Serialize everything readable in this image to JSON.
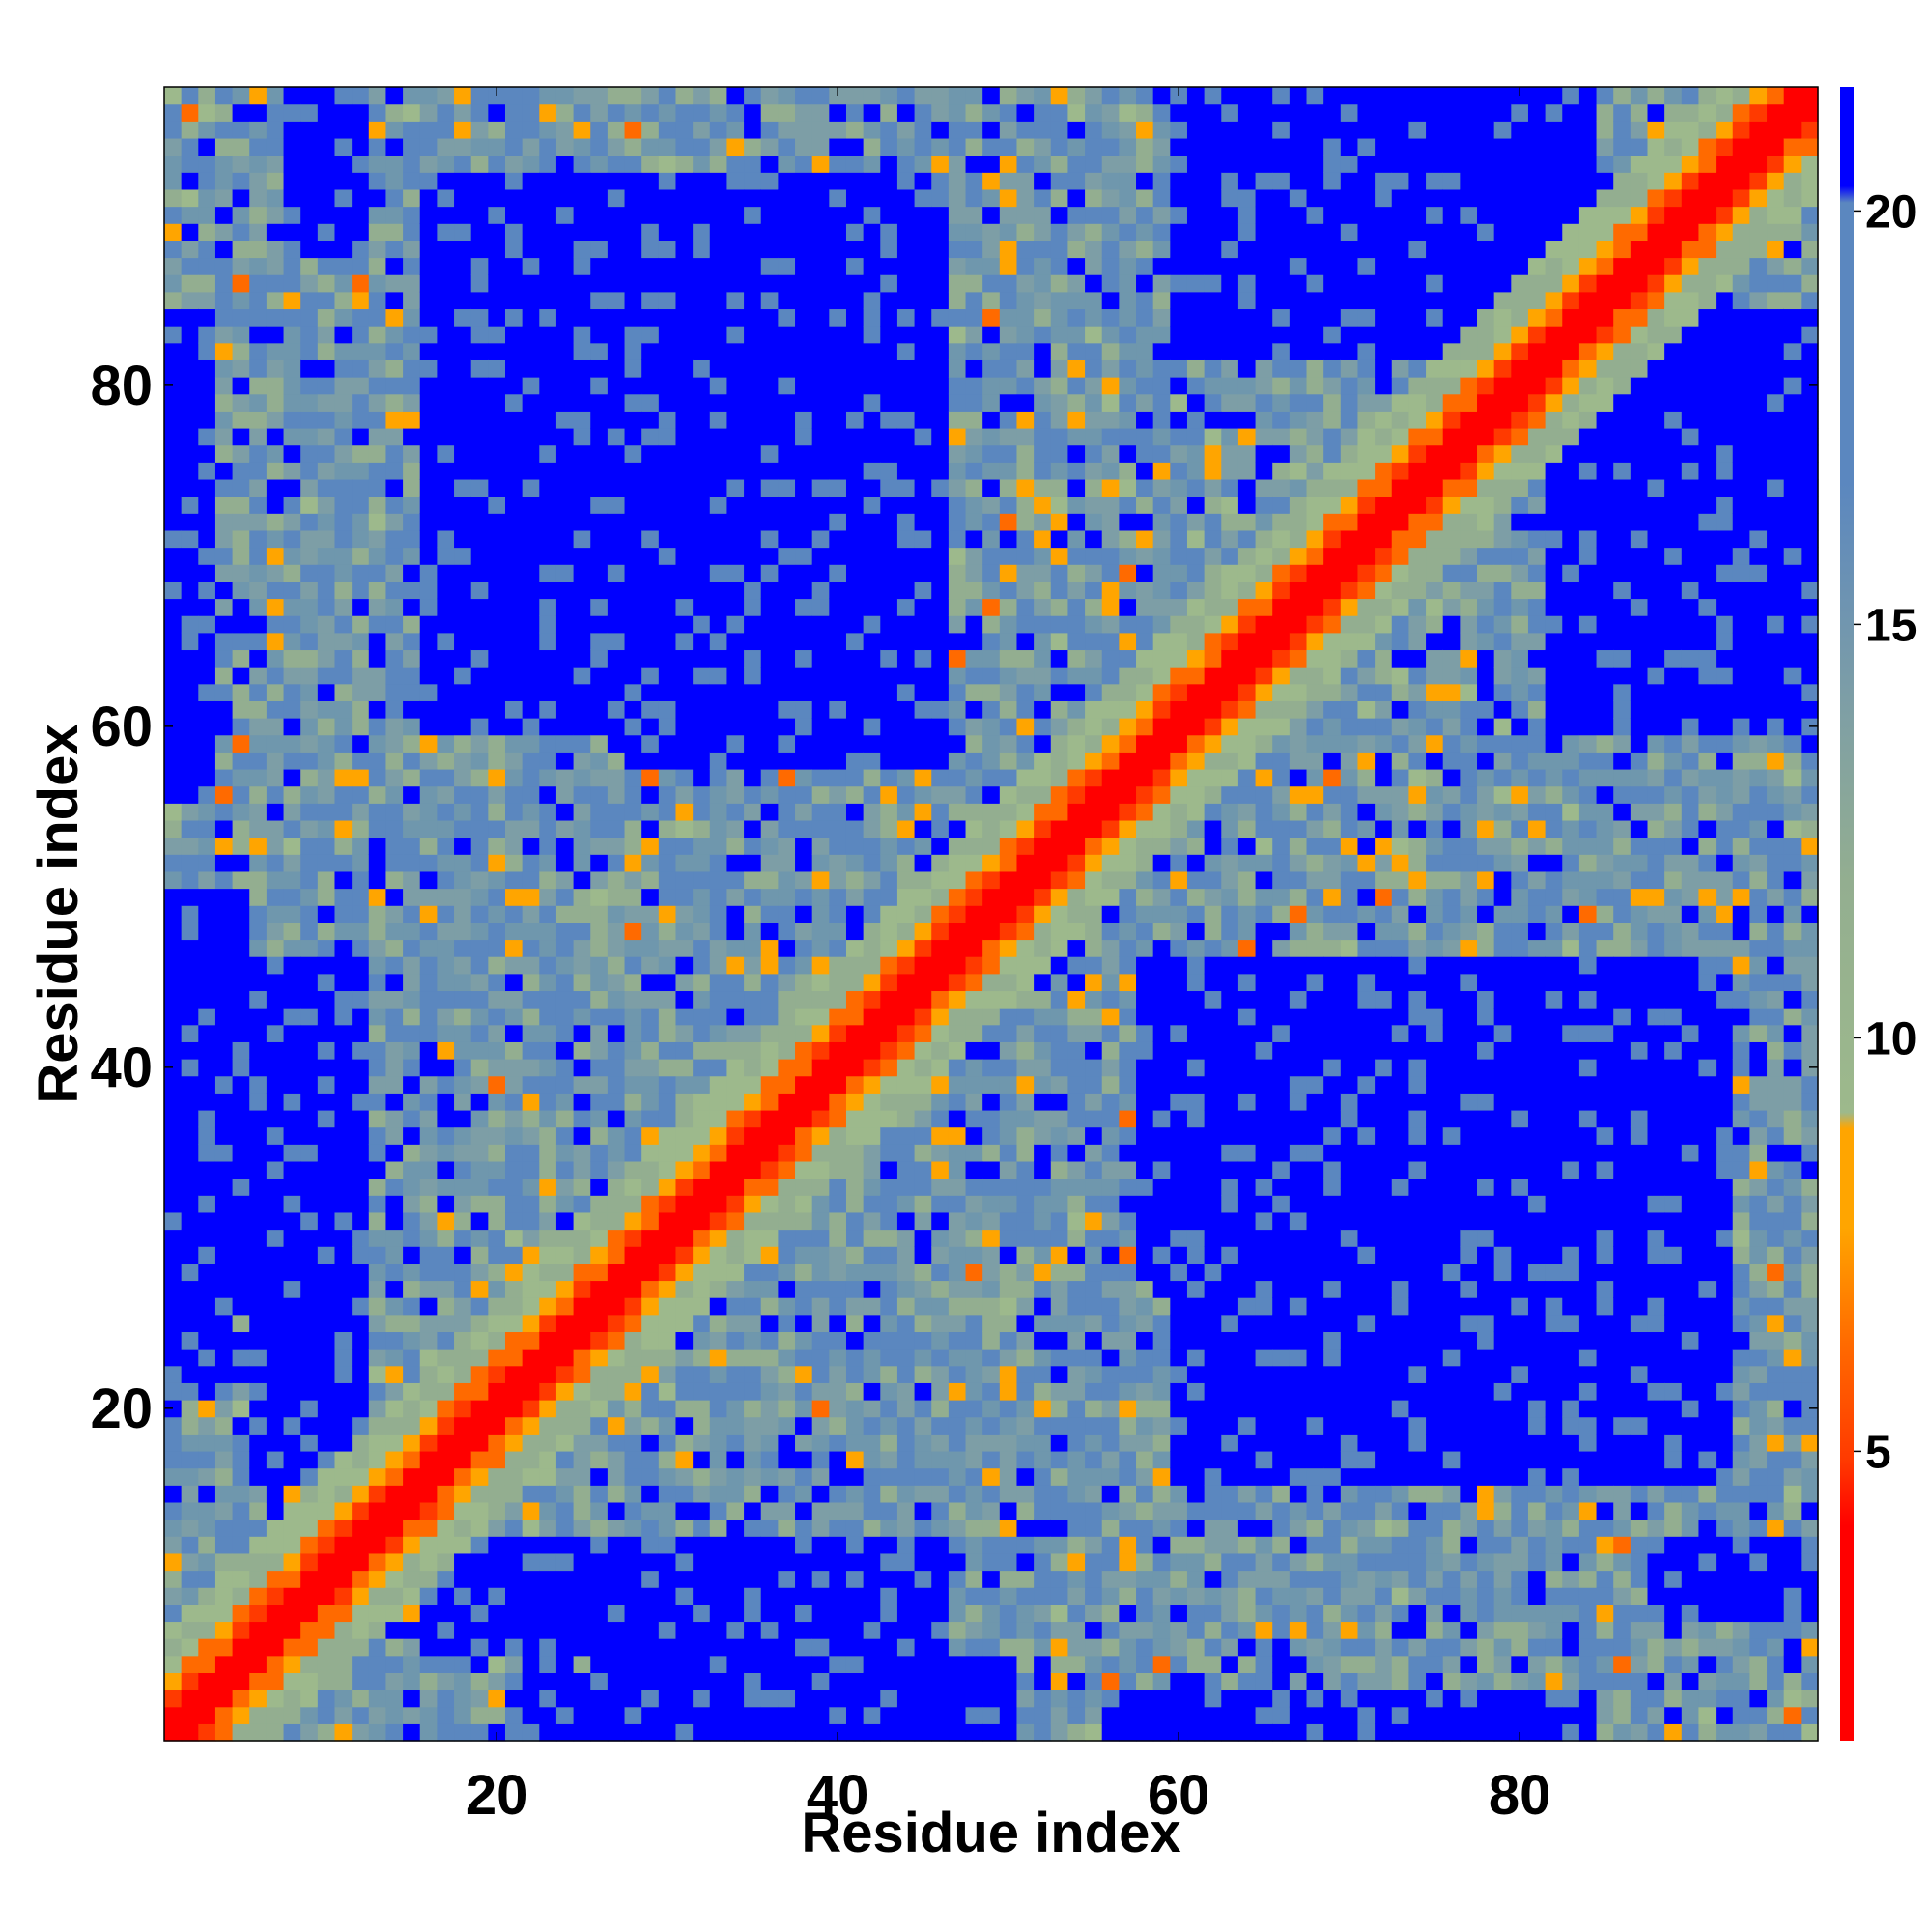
{
  "chart_data": {
    "type": "heatmap",
    "title": "",
    "xlabel": "Residue index",
    "ylabel": "Residue index",
    "n_residues": 97,
    "xlim": [
      1,
      97
    ],
    "ylim": [
      1,
      97
    ],
    "x_ticks": [
      20,
      40,
      60,
      80
    ],
    "y_ticks": [
      20,
      40,
      60,
      80
    ],
    "x_tick_labels": [
      "20",
      "40",
      "60",
      "80"
    ],
    "y_tick_labels": [
      "20",
      "40",
      "60",
      "80"
    ],
    "colorbar": {
      "range": [
        1.5,
        21.5
      ],
      "ticks": [
        5,
        10,
        15,
        20
      ],
      "tick_labels": [
        "5",
        "10",
        "15",
        "20"
      ],
      "colors": [
        "#ff0000",
        "#ff6a00",
        "#ffa500",
        "#9cb88a",
        "#5b87bf",
        "#0000ff"
      ]
    },
    "symmetric": true,
    "values_description_only": "pairwise residue distance map, symmetric about the diagonal",
    "regions": [
      {
        "x": [
          7,
          12
        ],
        "y": [
          16,
          46
        ],
        "value": 21
      },
      {
        "x": [
          16,
          46
        ],
        "y": [
          6,
          12
        ],
        "value": 21
      },
      {
        "x": [
          17,
          32
        ],
        "y": [
          62,
          92
        ],
        "value": 21
      },
      {
        "x": [
          28,
          46
        ],
        "y": [
          58,
          72
        ],
        "value": 21
      },
      {
        "x": [
          60,
          92
        ],
        "y": [
          16,
          46
        ],
        "value": 21
      },
      {
        "x": [
          58,
          72
        ],
        "y": [
          28,
          46
        ],
        "value": 21
      },
      {
        "x": [
          62,
          92
        ],
        "y": [
          17,
          32
        ],
        "value": 21
      },
      {
        "x": [
          60,
          84
        ],
        "y": [
          82,
          97
        ],
        "value": 21
      },
      {
        "x": [
          82,
          97
        ],
        "y": [
          60,
          84
        ],
        "value": 21
      },
      {
        "x": [
          1,
          3
        ],
        "y": [
          56,
          84
        ],
        "value": 21
      },
      {
        "x": [
          1,
          5
        ],
        "y": [
          26,
          50
        ],
        "value": 21
      },
      {
        "x": [
          22,
          44
        ],
        "y": [
          1,
          4
        ],
        "value": 21
      },
      {
        "x": [
          8,
          12
        ],
        "y": [
          88,
          97
        ],
        "value": 21
      }
    ]
  }
}
